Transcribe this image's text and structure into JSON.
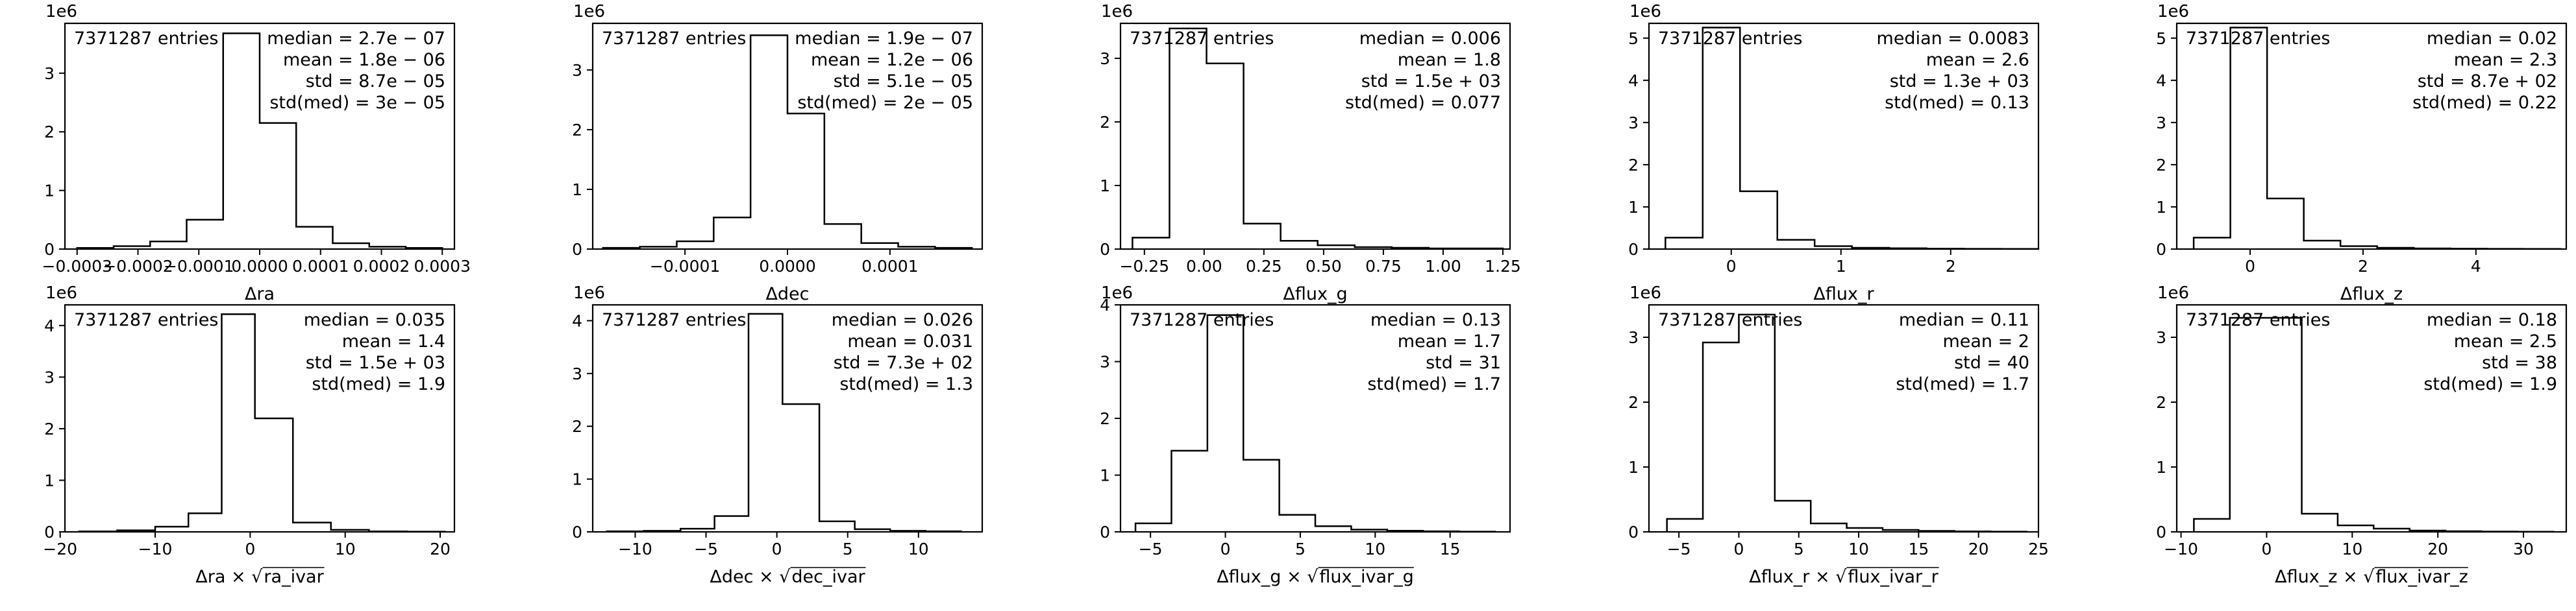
{
  "chart_data": [
    {
      "type": "bar",
      "xlabel_main": "Δra",
      "xlabel_sqrt": "",
      "xlim": [
        -0.00032,
        0.00032
      ],
      "ylim": [
        0,
        3.85
      ],
      "xticks": [
        -0.0003,
        -0.0002,
        -0.0001,
        0.0,
        0.0001,
        0.0002,
        0.0003
      ],
      "xtick_labels": [
        "−0.0003",
        "−0.0002",
        "−0.0001",
        "0.0000",
        "0.0001",
        "0.0002",
        "0.0003"
      ],
      "yticks": [
        0,
        1,
        2,
        3
      ],
      "ytick_labels": [
        "0",
        "1",
        "2",
        "3"
      ],
      "y_scale_label": "1e6",
      "bin_edges": [
        -0.0003,
        -0.00024,
        -0.00018,
        -0.00012,
        -6e-05,
        0.0,
        6e-05,
        0.00012,
        0.00018,
        0.00024,
        0.0003
      ],
      "values": [
        0.02,
        0.05,
        0.13,
        0.5,
        3.68,
        2.15,
        0.38,
        0.1,
        0.04,
        0.02
      ],
      "entries_label": "7371287 entries",
      "stats": [
        "median = 2.7e − 07",
        "mean = 1.8e − 06",
        "std = 8.7e − 05",
        "std(med) = 3e − 05"
      ]
    },
    {
      "type": "bar",
      "xlabel_main": "Δdec",
      "xlabel_sqrt": "",
      "xlim": [
        -0.00019,
        0.00019
      ],
      "ylim": [
        0,
        3.78
      ],
      "xticks": [
        -0.0001,
        0.0,
        0.0001
      ],
      "xtick_labels": [
        "−0.0001",
        "0.0000",
        "0.0001"
      ],
      "yticks": [
        0,
        1,
        2,
        3
      ],
      "ytick_labels": [
        "0",
        "1",
        "2",
        "3"
      ],
      "y_scale_label": "1e6",
      "bin_edges": [
        -0.00018,
        -0.000144,
        -0.000108,
        -7.2e-05,
        -3.6e-05,
        0.0,
        3.6e-05,
        7.2e-05,
        0.000108,
        0.000144,
        0.00018
      ],
      "values": [
        0.02,
        0.04,
        0.13,
        0.53,
        3.58,
        2.27,
        0.42,
        0.1,
        0.04,
        0.02
      ],
      "entries_label": "7371287 entries",
      "stats": [
        "median = 1.9e − 07",
        "mean = 1.2e − 06",
        "std = 5.1e − 05",
        "std(med) = 2e − 05"
      ]
    },
    {
      "type": "bar",
      "xlabel_main": "Δflux_g",
      "xlabel_sqrt": "",
      "xlim": [
        -0.35,
        1.28
      ],
      "ylim": [
        0,
        3.55
      ],
      "xticks": [
        -0.25,
        0.0,
        0.25,
        0.5,
        0.75,
        1.0,
        1.25
      ],
      "xtick_labels": [
        "−0.25",
        "0.00",
        "0.25",
        "0.50",
        "0.75",
        "1.00",
        "1.25"
      ],
      "yticks": [
        0,
        1,
        2,
        3
      ],
      "ytick_labels": [
        "0",
        "1",
        "2",
        "3"
      ],
      "y_scale_label": "1e6",
      "bin_edges": [
        -0.3,
        -0.145,
        0.01,
        0.165,
        0.32,
        0.475,
        0.63,
        0.785,
        0.94,
        1.095,
        1.25
      ],
      "values": [
        0.18,
        3.47,
        2.92,
        0.4,
        0.13,
        0.06,
        0.03,
        0.02,
        0.01,
        0.01
      ],
      "entries_label": "7371287 entries",
      "stats": [
        "median = 0.006",
        "mean = 1.8",
        "std = 1.5e + 03",
        "std(med) = 0.077"
      ]
    },
    {
      "type": "bar",
      "xlabel_main": "Δflux_r",
      "xlabel_sqrt": "",
      "xlim": [
        -0.75,
        2.8
      ],
      "ylim": [
        0,
        5.35
      ],
      "xticks": [
        0,
        1,
        2
      ],
      "xtick_labels": [
        "0",
        "1",
        "2"
      ],
      "yticks": [
        0,
        1,
        2,
        3,
        4,
        5
      ],
      "ytick_labels": [
        "0",
        "1",
        "2",
        "3",
        "4",
        "5"
      ],
      "y_scale_label": "1e6",
      "bin_edges": [
        -0.6,
        -0.26,
        0.08,
        0.42,
        0.76,
        1.1,
        1.44,
        1.78,
        2.12,
        2.46,
        2.8
      ],
      "values": [
        0.27,
        5.25,
        1.37,
        0.22,
        0.07,
        0.03,
        0.02,
        0.01,
        0.005,
        0.003
      ],
      "entries_label": "7371287 entries",
      "stats": [
        "median = 0.0083",
        "mean = 2.6",
        "std = 1.3e + 03",
        "std(med) = 0.13"
      ]
    },
    {
      "type": "bar",
      "xlabel_main": "Δflux_z",
      "xlabel_sqrt": "",
      "xlim": [
        -1.3,
        5.6
      ],
      "ylim": [
        0,
        5.35
      ],
      "xticks": [
        0,
        2,
        4
      ],
      "xtick_labels": [
        "0",
        "2",
        "4"
      ],
      "yticks": [
        0,
        1,
        2,
        3,
        4,
        5
      ],
      "ytick_labels": [
        "0",
        "1",
        "2",
        "3",
        "4",
        "5"
      ],
      "y_scale_label": "1e6",
      "bin_edges": [
        -1.0,
        -0.35,
        0.3,
        0.95,
        1.6,
        2.25,
        2.9,
        3.55,
        4.2,
        4.85,
        5.5
      ],
      "values": [
        0.27,
        5.25,
        1.2,
        0.2,
        0.07,
        0.03,
        0.015,
        0.01,
        0.005,
        0.003
      ],
      "entries_label": "7371287 entries",
      "stats": [
        "median = 0.02",
        "mean = 2.3",
        "std = 8.7e + 02",
        "std(med) = 0.22"
      ]
    },
    {
      "type": "bar",
      "xlabel_main": "Δra × ",
      "xlabel_sqrt": "ra_ivar",
      "xlim": [
        -19.5,
        21.5
      ],
      "ylim": [
        0,
        4.4
      ],
      "xticks": [
        -20,
        -10,
        0,
        10,
        20
      ],
      "xtick_labels": [
        "−20",
        "−10",
        "0",
        "10",
        "20"
      ],
      "yticks": [
        0,
        1,
        2,
        3,
        4
      ],
      "ytick_labels": [
        "0",
        "1",
        "2",
        "3",
        "4"
      ],
      "y_scale_label": "1e6",
      "bin_edges": [
        -18.0,
        -14.0,
        -10.0,
        -6.5,
        -3.0,
        0.5,
        4.5,
        8.5,
        12.5,
        16.5,
        20.5
      ],
      "values": [
        0.01,
        0.03,
        0.1,
        0.36,
        4.22,
        2.2,
        0.18,
        0.04,
        0.01,
        0.005
      ],
      "entries_label": "7371287 entries",
      "stats": [
        "median = 0.035",
        "mean = 1.4",
        "std = 1.5e + 03",
        "std(med) = 1.9"
      ]
    },
    {
      "type": "bar",
      "xlabel_main": "Δdec × ",
      "xlabel_sqrt": "dec_ivar",
      "xlim": [
        -13.0,
        14.5
      ],
      "ylim": [
        0,
        4.3
      ],
      "xticks": [
        -10,
        -5,
        0,
        5,
        10
      ],
      "xtick_labels": [
        "−10",
        "−5",
        "0",
        "5",
        "10"
      ],
      "yticks": [
        0,
        1,
        2,
        3,
        4
      ],
      "ytick_labels": [
        "0",
        "1",
        "2",
        "3",
        "4"
      ],
      "y_scale_label": "1e6",
      "bin_edges": [
        -12.0,
        -9.4,
        -6.8,
        -4.4,
        -2.0,
        0.4,
        3.0,
        5.5,
        8.0,
        10.5,
        13.0
      ],
      "values": [
        0.01,
        0.02,
        0.06,
        0.3,
        4.13,
        2.42,
        0.2,
        0.05,
        0.02,
        0.01
      ],
      "entries_label": "7371287 entries",
      "stats": [
        "median = 0.026",
        "mean = 0.031",
        "std = 7.3e + 02",
        "std(med) = 1.3"
      ]
    },
    {
      "type": "bar",
      "xlabel_main": "Δflux_g × ",
      "xlabel_sqrt": "flux_ivar_g",
      "xlim": [
        -7.0,
        19.0
      ],
      "ylim": [
        0,
        4.0
      ],
      "xticks": [
        -5,
        0,
        5,
        10,
        15
      ],
      "xtick_labels": [
        "−5",
        "0",
        "5",
        "10",
        "15"
      ],
      "yticks": [
        0,
        1,
        2,
        3,
        4
      ],
      "ytick_labels": [
        "0",
        "1",
        "2",
        "3",
        "4"
      ],
      "y_scale_label": "1e6",
      "bin_edges": [
        -6.0,
        -3.6,
        -1.2,
        1.2,
        3.6,
        6.0,
        8.4,
        10.8,
        13.2,
        15.6,
        18.0
      ],
      "values": [
        0.15,
        1.43,
        3.82,
        1.27,
        0.3,
        0.1,
        0.04,
        0.02,
        0.01,
        0.005
      ],
      "entries_label": "7371287 entries",
      "stats": [
        "median = 0.13",
        "mean = 1.7",
        "std = 31",
        "std(med) = 1.7"
      ]
    },
    {
      "type": "bar",
      "xlabel_main": "Δflux_r × ",
      "xlabel_sqrt": "flux_ivar_r",
      "xlim": [
        -7.5,
        25.0
      ],
      "ylim": [
        0,
        3.5
      ],
      "xticks": [
        -5,
        0,
        5,
        10,
        15,
        20,
        25
      ],
      "xtick_labels": [
        "−5",
        "0",
        "5",
        "10",
        "15",
        "20",
        "25"
      ],
      "yticks": [
        0,
        1,
        2,
        3
      ],
      "ytick_labels": [
        "0",
        "1",
        "2",
        "3"
      ],
      "y_scale_label": "1e6",
      "bin_edges": [
        -6.0,
        -3.0,
        0.0,
        3.0,
        6.0,
        9.0,
        12.0,
        15.0,
        18.0,
        21.0,
        24.0
      ],
      "values": [
        0.2,
        2.92,
        3.35,
        0.48,
        0.13,
        0.06,
        0.03,
        0.015,
        0.008,
        0.004
      ],
      "entries_label": "7371287 entries",
      "stats": [
        "median = 0.11",
        "mean = 2",
        "std = 40",
        "std(med) = 1.7"
      ]
    },
    {
      "type": "bar",
      "xlabel_main": "Δflux_z × ",
      "xlabel_sqrt": "flux_ivar_z",
      "xlim": [
        -10.5,
        35.0
      ],
      "ylim": [
        0,
        3.5
      ],
      "xticks": [
        -10,
        0,
        10,
        20,
        30
      ],
      "xtick_labels": [
        "−10",
        "0",
        "10",
        "20",
        "30"
      ],
      "yticks": [
        0,
        1,
        2,
        3
      ],
      "ytick_labels": [
        "0",
        "1",
        "2",
        "3"
      ],
      "y_scale_label": "1e6",
      "bin_edges": [
        -8.5,
        -4.3,
        -0.1,
        4.1,
        8.3,
        12.5,
        16.7,
        20.9,
        25.1,
        29.3,
        33.5
      ],
      "values": [
        0.2,
        3.3,
        3.3,
        0.28,
        0.1,
        0.05,
        0.02,
        0.01,
        0.005,
        0.003
      ],
      "entries_label": "7371287 entries",
      "stats": [
        "median = 0.18",
        "mean = 2.5",
        "std = 38",
        "std(med) = 1.9"
      ]
    }
  ]
}
